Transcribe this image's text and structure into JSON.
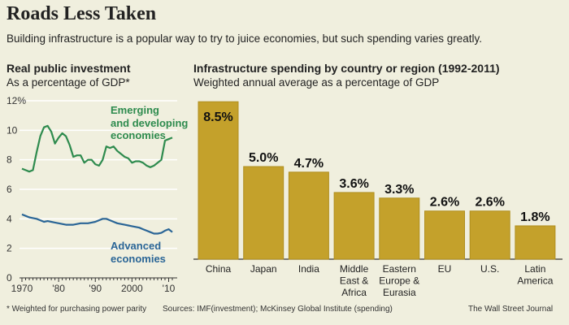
{
  "header": {
    "title": "Roads Less Taken",
    "subtitle": "Building infrastructure is a popular way to try to juice economies, but such spending varies greatly."
  },
  "footer": {
    "note": "* Weighted for purchasing power parity",
    "sources": "Sources: IMF(investment); McKinsey Global Institute (spending)",
    "credit": "The Wall Street Journal"
  },
  "colors": {
    "background": "#f0efde",
    "emerging": "#2e8b4e",
    "advanced": "#2a6596",
    "bar": "#c4a12b"
  },
  "chart_data": [
    {
      "type": "line",
      "title": "Real public investment",
      "subtitle": "As a percentage of GDP*",
      "ylim": [
        0,
        12
      ],
      "yticks": [
        "0",
        "2",
        "4",
        "6",
        "8",
        "10",
        "12%"
      ],
      "xlim": [
        1970,
        2011
      ],
      "xticks": [
        "1970",
        "'80",
        "'90",
        "2000",
        "'10"
      ],
      "grid": true,
      "x": [
        1970,
        1971,
        1972,
        1973,
        1974,
        1975,
        1976,
        1977,
        1978,
        1979,
        1980,
        1981,
        1982,
        1983,
        1984,
        1985,
        1986,
        1987,
        1988,
        1989,
        1990,
        1991,
        1992,
        1993,
        1994,
        1995,
        1996,
        1997,
        1998,
        1999,
        2000,
        2001,
        2002,
        2003,
        2004,
        2005,
        2006,
        2007,
        2008,
        2009,
        2010,
        2011
      ],
      "series": [
        {
          "name": "Emerging and developing economies",
          "label_lines": [
            "Emerging",
            "and developing",
            "economies"
          ],
          "values": [
            7.4,
            7.3,
            7.2,
            7.3,
            8.5,
            9.6,
            10.2,
            10.3,
            9.9,
            9.1,
            9.5,
            9.8,
            9.6,
            9.0,
            8.2,
            8.3,
            8.3,
            7.8,
            8.0,
            8.0,
            7.7,
            7.6,
            8.0,
            8.9,
            8.8,
            8.9,
            8.6,
            8.4,
            8.2,
            8.1,
            7.8,
            7.9,
            7.9,
            7.8,
            7.6,
            7.5,
            7.6,
            7.8,
            8.0,
            9.3,
            9.4,
            9.5
          ]
        },
        {
          "name": "Advanced economies",
          "label_lines": [
            "Advanced",
            "economies"
          ],
          "values": [
            4.3,
            4.2,
            4.1,
            4.05,
            4.0,
            3.9,
            3.8,
            3.85,
            3.8,
            3.75,
            3.7,
            3.65,
            3.6,
            3.6,
            3.6,
            3.65,
            3.7,
            3.7,
            3.7,
            3.75,
            3.8,
            3.9,
            4.0,
            4.0,
            3.9,
            3.8,
            3.7,
            3.65,
            3.6,
            3.55,
            3.5,
            3.45,
            3.4,
            3.3,
            3.2,
            3.1,
            3.0,
            3.0,
            3.05,
            3.2,
            3.3,
            3.1
          ]
        }
      ]
    },
    {
      "type": "bar",
      "title": "Infrastructure spending by country or region (1992-2011)",
      "subtitle": "Weighted annual average as a percentage of GDP",
      "categories": [
        [
          "China"
        ],
        [
          "Japan"
        ],
        [
          "India"
        ],
        [
          "Middle",
          "East &",
          "Africa"
        ],
        [
          "Eastern",
          "Europe &",
          "Eurasia"
        ],
        [
          "EU"
        ],
        [
          "U.S."
        ],
        [
          "Latin",
          "America"
        ]
      ],
      "values": [
        8.5,
        5.0,
        4.7,
        3.6,
        3.3,
        2.6,
        2.6,
        1.8
      ],
      "labels": [
        "8.5%",
        "5.0%",
        "4.7%",
        "3.6%",
        "3.3%",
        "2.6%",
        "2.6%",
        "1.8%"
      ]
    }
  ]
}
